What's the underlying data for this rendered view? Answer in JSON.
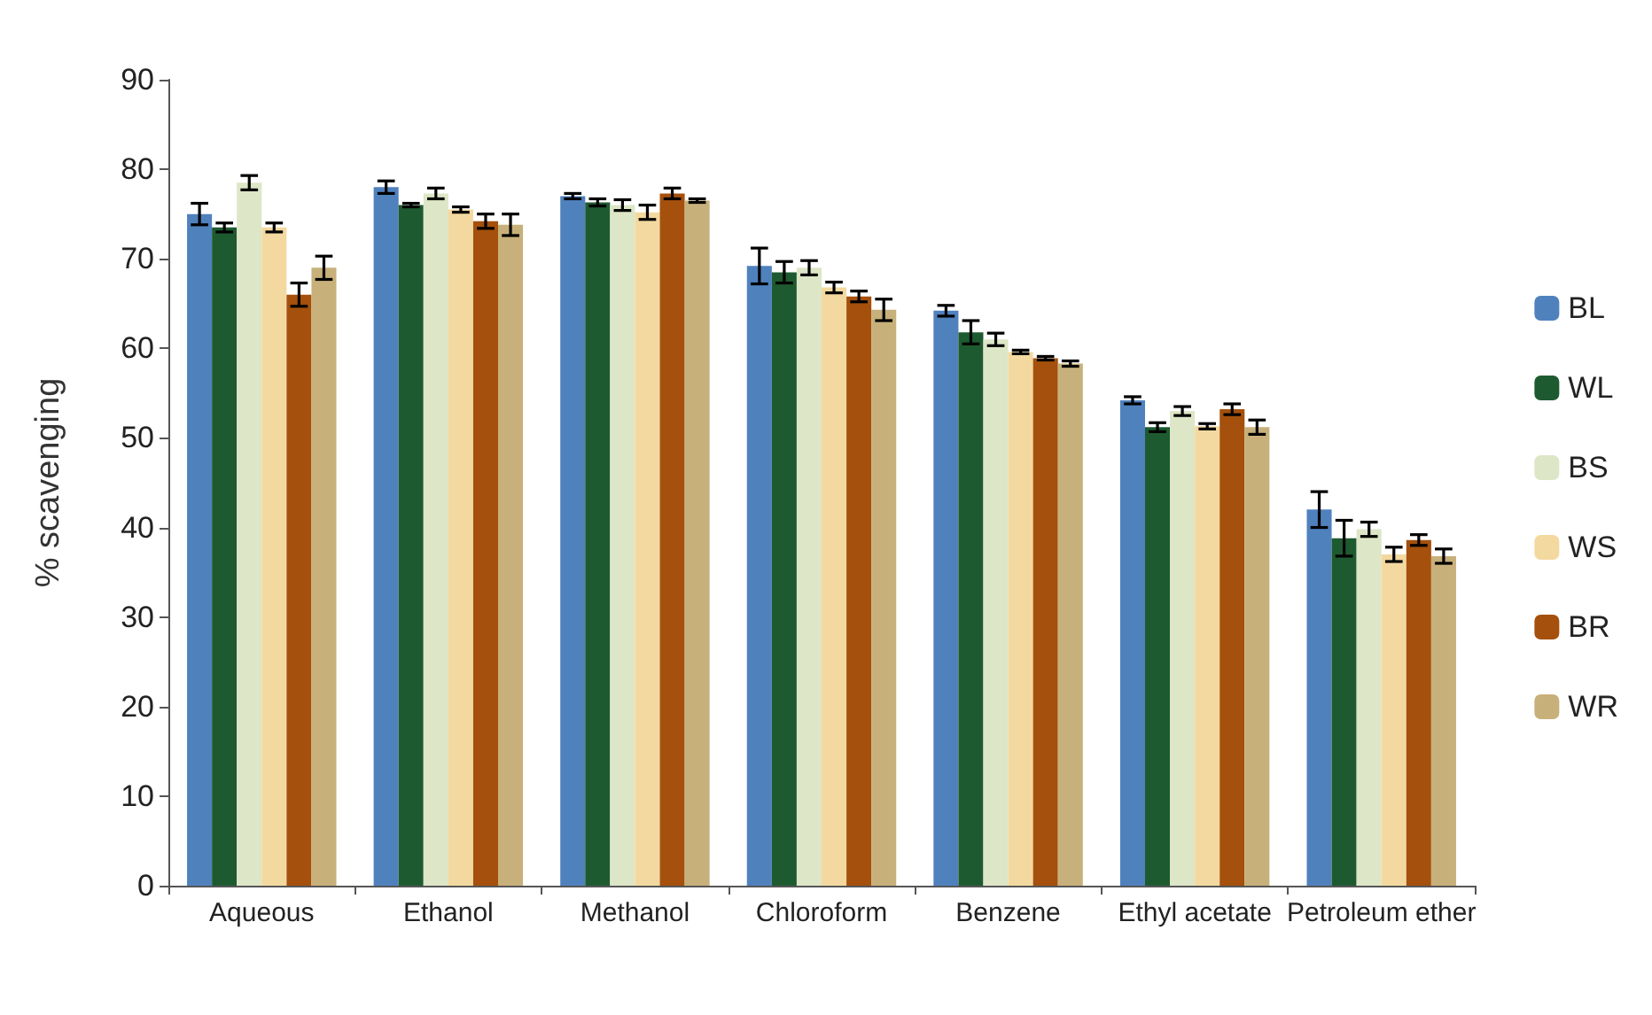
{
  "chart_data": {
    "type": "bar",
    "ylabel": "% scavenging",
    "categories": [
      "Aqueous",
      "Ethanol",
      "Methanol",
      "Chloroform",
      "Benzene",
      "Ethyl acetate",
      "Petroleum ether"
    ],
    "series": [
      {
        "name": "BL",
        "color": "#4f81bd",
        "values": [
          75,
          78,
          77,
          69.2,
          64.2,
          54.2,
          42
        ],
        "errors": [
          1.2,
          0.7,
          0.3,
          2,
          0.6,
          0.4,
          2
        ]
      },
      {
        "name": "WL",
        "color": "#1e5a30",
        "values": [
          73.5,
          76,
          76.3,
          68.5,
          61.8,
          51.2,
          38.8
        ],
        "errors": [
          0.5,
          0.2,
          0.4,
          1.2,
          1.3,
          0.5,
          2
        ]
      },
      {
        "name": "BS",
        "color": "#dde6c6",
        "values": [
          78.5,
          77.3,
          76,
          69,
          61,
          53,
          39.8
        ],
        "errors": [
          0.8,
          0.6,
          0.6,
          0.8,
          0.7,
          0.5,
          0.8
        ]
      },
      {
        "name": "WS",
        "color": "#f3d9a0",
        "values": [
          73.5,
          75.5,
          75.2,
          66.8,
          59.6,
          51.3,
          37
        ],
        "errors": [
          0.5,
          0.3,
          0.8,
          0.6,
          0.2,
          0.3,
          0.8
        ]
      },
      {
        "name": "BR",
        "color": "#a5500c",
        "values": [
          66,
          74.2,
          77.3,
          65.8,
          58.9,
          53.2,
          38.6
        ],
        "errors": [
          1.3,
          0.8,
          0.6,
          0.6,
          0.2,
          0.6,
          0.6
        ]
      },
      {
        "name": "WR",
        "color": "#c8b07a",
        "values": [
          69,
          73.8,
          76.5,
          64.3,
          58.3,
          51.2,
          36.8
        ],
        "errors": [
          1.3,
          1.2,
          0.2,
          1.2,
          0.3,
          0.8,
          0.8
        ]
      }
    ],
    "ylim": [
      0,
      90
    ],
    "yticks": [
      0,
      10,
      20,
      30,
      40,
      50,
      60,
      70,
      80,
      90
    ],
    "grid": false,
    "legend": "right"
  }
}
